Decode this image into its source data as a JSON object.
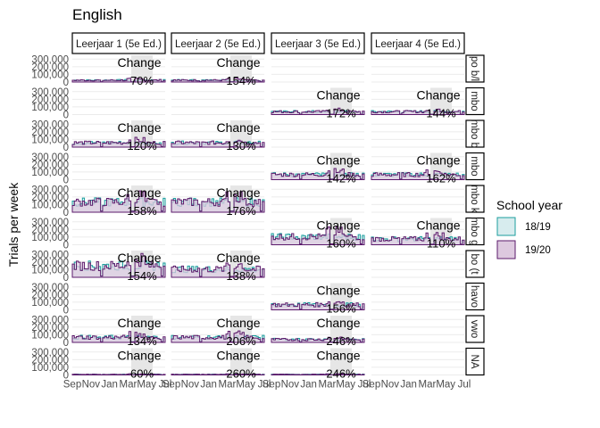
{
  "chart_data": {
    "type": "area",
    "title": "English",
    "ylabel": "Trials per week",
    "xlabel": "",
    "columns": [
      "Leerjaar 1 (5e Ed.)",
      "Leerjaar 2 (5e Ed.)",
      "Leerjaar 3 (5e Ed.)",
      "Leerjaar 4 (5e Ed.)"
    ],
    "rows": [
      "po b/l",
      "mbo",
      "mbo b",
      "mbo",
      "mbo k",
      "mbo g",
      "bo (t)",
      "havo",
      "vwo",
      "NA"
    ],
    "row_labels_shown": [
      "po b/l",
      "mbo",
      "mbo b",
      "mbo",
      "mbo k",
      "mbo g",
      "bo (t",
      "havo",
      "vwo",
      "NA"
    ],
    "x_ticks": [
      "Sep",
      "Nov",
      "Jan",
      "Mar",
      "May",
      "Jul"
    ],
    "y_ticks": [
      "0",
      "100,000",
      "200,000",
      "300,000"
    ],
    "ylim": [
      0,
      350000
    ],
    "grid": true,
    "legend": {
      "title": "School year",
      "position": "right",
      "items": [
        {
          "name": "18/19",
          "color": "#1b9e9e",
          "fill": "#d7ecee"
        },
        {
          "name": "19/20",
          "color": "#5b1a6b",
          "fill": "#ddc9df"
        }
      ]
    },
    "change_label": "Change",
    "panels": [
      {
        "row": 0,
        "col": 0,
        "present": true,
        "change": "70%",
        "level": 25000
      },
      {
        "row": 0,
        "col": 1,
        "present": true,
        "change": "154%",
        "level": 25000
      },
      {
        "row": 0,
        "col": 2,
        "present": false
      },
      {
        "row": 0,
        "col": 3,
        "present": false
      },
      {
        "row": 1,
        "col": 0,
        "present": false
      },
      {
        "row": 1,
        "col": 1,
        "present": false
      },
      {
        "row": 1,
        "col": 2,
        "present": true,
        "change": "172%",
        "level": 40000
      },
      {
        "row": 1,
        "col": 3,
        "present": true,
        "change": "144%",
        "level": 40000
      },
      {
        "row": 2,
        "col": 0,
        "present": true,
        "change": "120%",
        "level": 60000
      },
      {
        "row": 2,
        "col": 1,
        "present": true,
        "change": "130%",
        "level": 60000
      },
      {
        "row": 2,
        "col": 2,
        "present": false
      },
      {
        "row": 2,
        "col": 3,
        "present": false
      },
      {
        "row": 3,
        "col": 0,
        "present": false
      },
      {
        "row": 3,
        "col": 1,
        "present": false
      },
      {
        "row": 3,
        "col": 2,
        "present": true,
        "change": "142%",
        "level": 70000
      },
      {
        "row": 3,
        "col": 3,
        "present": true,
        "change": "162%",
        "level": 70000
      },
      {
        "row": 4,
        "col": 0,
        "present": true,
        "change": "158%",
        "level": 140000
      },
      {
        "row": 4,
        "col": 1,
        "present": true,
        "change": "176%",
        "level": 140000
      },
      {
        "row": 4,
        "col": 2,
        "present": false
      },
      {
        "row": 4,
        "col": 3,
        "present": false
      },
      {
        "row": 5,
        "col": 0,
        "present": false
      },
      {
        "row": 5,
        "col": 1,
        "present": false
      },
      {
        "row": 5,
        "col": 2,
        "present": true,
        "change": "160%",
        "level": 110000
      },
      {
        "row": 5,
        "col": 3,
        "present": true,
        "change": "110%",
        "level": 80000
      },
      {
        "row": 6,
        "col": 0,
        "present": true,
        "change": "154%",
        "level": 160000
      },
      {
        "row": 6,
        "col": 1,
        "present": true,
        "change": "138%",
        "level": 110000
      },
      {
        "row": 6,
        "col": 2,
        "present": false
      },
      {
        "row": 6,
        "col": 3,
        "present": false
      },
      {
        "row": 7,
        "col": 0,
        "present": false
      },
      {
        "row": 7,
        "col": 1,
        "present": false
      },
      {
        "row": 7,
        "col": 2,
        "present": true,
        "change": "156%",
        "level": 70000
      },
      {
        "row": 7,
        "col": 3,
        "present": false
      },
      {
        "row": 8,
        "col": 0,
        "present": true,
        "change": "134%",
        "level": 70000
      },
      {
        "row": 8,
        "col": 1,
        "present": true,
        "change": "206%",
        "level": 70000
      },
      {
        "row": 8,
        "col": 2,
        "present": true,
        "change": "246%",
        "level": 40000
      },
      {
        "row": 8,
        "col": 3,
        "present": false
      },
      {
        "row": 9,
        "col": 0,
        "present": true,
        "change": "60%",
        "level": 8000
      },
      {
        "row": 9,
        "col": 1,
        "present": true,
        "change": "260%",
        "level": 8000
      },
      {
        "row": 9,
        "col": 2,
        "present": true,
        "change": "246%",
        "level": 8000
      },
      {
        "row": 9,
        "col": 3,
        "present": false
      }
    ]
  }
}
